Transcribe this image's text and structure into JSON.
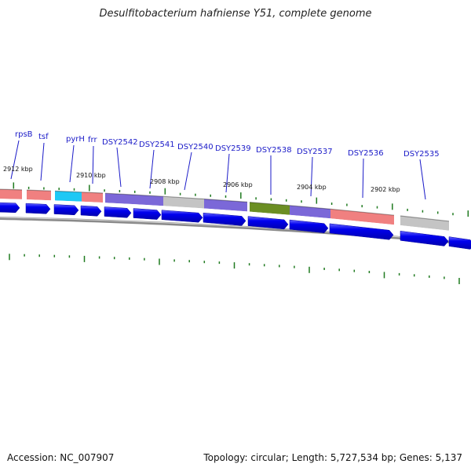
{
  "title": "Desulfitobacterium hafniense Y51, complete genome",
  "footer": {
    "accession": "Accession: NC_007907",
    "summary": "Topology: circular; Length: 5,727,534 bp; Genes: 5,137"
  },
  "colors": {
    "gene_label": "#1a1ac8",
    "cds_arrow": "#0000ee",
    "tick": "#1f7a1f",
    "backbone": "#8c8c8c"
  },
  "gene_labels": [
    "rpsB",
    "tsf",
    "pyrH",
    "frr",
    "DSY2542",
    "DSY2541",
    "DSY2540",
    "DSY2539",
    "DSY2538",
    "DSY2537",
    "DSY2536",
    "DSY2535"
  ],
  "kbp_labels": [
    "2912 kbp",
    "2910 kbp",
    "2908 kbp",
    "2906 kbp",
    "2904 kbp",
    "2902 kbp"
  ],
  "feature_colors": [
    "salmon",
    "salmon",
    "cyan",
    "salmon",
    "purple",
    "purple",
    "gray",
    "purple",
    "olive",
    "purple",
    "salmon",
    "gray"
  ],
  "feature_palette": {
    "salmon": "#f08080",
    "cyan": "#1ec8f5",
    "purple": "#7b68d8",
    "gray": "#c4c4c4",
    "olive": "#6b8e23"
  }
}
